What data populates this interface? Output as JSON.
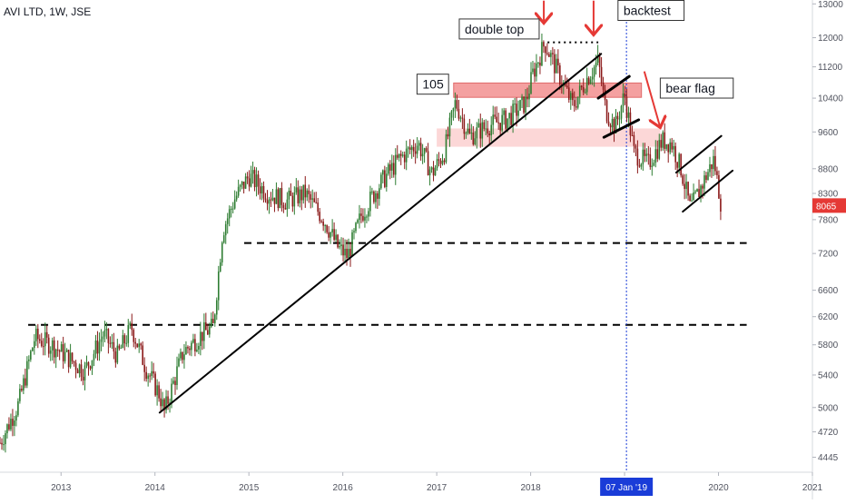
{
  "header": {
    "symbol_title": "AVI LTD, 1W, JSE"
  },
  "chart_data": {
    "type": "candlestick",
    "title": "AVI LTD, 1W, JSE",
    "x_range": [
      2012.35,
      2021.0
    ],
    "y_range": [
      4290,
      13120
    ],
    "y_scale": "log",
    "y_ticks": [
      4445,
      4720,
      5000,
      5400,
      5800,
      6200,
      6600,
      7200,
      7800,
      8300,
      8800,
      9600,
      10400,
      11200,
      12000,
      13000
    ],
    "y_tick_labels": [
      "4445",
      "4720",
      "5000",
      "5400",
      "5800",
      "6200",
      "6600",
      "7200",
      "7800",
      "8300",
      "8800",
      "9600",
      "10400",
      "11200",
      "12000",
      "13000"
    ],
    "x_ticks": [
      2013,
      2014,
      2015,
      2016,
      2017,
      2018,
      2019,
      2020,
      2021
    ],
    "x_tick_labels": [
      "2013",
      "2014",
      "2015",
      "2016",
      "2017",
      "2018",
      "",
      "2020",
      "2021"
    ],
    "last_price": {
      "value": 8065,
      "label": "8065",
      "color": "#e53935"
    },
    "crosshair": {
      "x": 2019.02,
      "label": "07 Jan '19",
      "color": "#1a3cd8"
    },
    "colors": {
      "up": "#2e7d32",
      "down": "#8b1a1a",
      "zone_dark": "#f08080",
      "zone_light": "#fbc6c6",
      "arrow": "#e53935"
    },
    "price_path": [
      [
        2012.35,
        4600
      ],
      [
        2012.55,
        5050
      ],
      [
        2012.72,
        5900
      ],
      [
        2012.9,
        5800
      ],
      [
        2013.05,
        5650
      ],
      [
        2013.25,
        5450
      ],
      [
        2013.45,
        5950
      ],
      [
        2013.6,
        5650
      ],
      [
        2013.75,
        6050
      ],
      [
        2013.9,
        5500
      ],
      [
        2014.05,
        5150
      ],
      [
        2014.1,
        4950
      ],
      [
        2014.3,
        5700
      ],
      [
        2014.5,
        5950
      ],
      [
        2014.62,
        6050
      ],
      [
        2014.72,
        7600
      ],
      [
        2014.85,
        8200
      ],
      [
        2015.0,
        8650
      ],
      [
        2015.2,
        8300
      ],
      [
        2015.4,
        8150
      ],
      [
        2015.6,
        8300
      ],
      [
        2015.8,
        7800
      ],
      [
        2015.95,
        7300
      ],
      [
        2016.05,
        7150
      ],
      [
        2016.2,
        7900
      ],
      [
        2016.4,
        8500
      ],
      [
        2016.6,
        9000
      ],
      [
        2016.8,
        9350
      ],
      [
        2016.95,
        8700
      ],
      [
        2017.08,
        9150
      ],
      [
        2017.2,
        10300
      ],
      [
        2017.35,
        9500
      ],
      [
        2017.55,
        9750
      ],
      [
        2017.75,
        9900
      ],
      [
        2017.95,
        10300
      ],
      [
        2018.02,
        11000
      ],
      [
        2018.15,
        11850
      ],
      [
        2018.3,
        11000
      ],
      [
        2018.45,
        10200
      ],
      [
        2018.6,
        10900
      ],
      [
        2018.72,
        11350
      ],
      [
        2018.8,
        10100
      ],
      [
        2018.9,
        9700
      ],
      [
        2019.0,
        10500
      ],
      [
        2019.1,
        9150
      ],
      [
        2019.25,
        8900
      ],
      [
        2019.4,
        9400
      ],
      [
        2019.5,
        9350
      ],
      [
        2019.6,
        8800
      ],
      [
        2019.7,
        8000
      ],
      [
        2019.82,
        8450
      ],
      [
        2019.95,
        9000
      ],
      [
        2020.03,
        8065
      ]
    ],
    "horizontal_levels": [
      {
        "value": 7380,
        "from": 2014.95,
        "to": 2020.3,
        "style": "dashed"
      },
      {
        "value": 6080,
        "from": 2012.65,
        "to": 2020.3,
        "style": "dashed"
      }
    ],
    "resistance_zones": [
      {
        "from": 2017.18,
        "to": 2019.18,
        "low": 10420,
        "high": 10780,
        "shade": "dark"
      },
      {
        "from": 2017.0,
        "to": 2019.38,
        "low": 9270,
        "high": 9680,
        "shade": "light"
      }
    ],
    "trendlines": [
      {
        "points": [
          [
            2014.05,
            4940
          ],
          [
            2018.75,
            11550
          ]
        ],
        "width": 2
      },
      {
        "points": [
          [
            2018.72,
            10400
          ],
          [
            2019.05,
            10950
          ]
        ],
        "width": 3
      },
      {
        "points": [
          [
            2018.78,
            9480
          ],
          [
            2019.15,
            9880
          ]
        ],
        "width": 3
      },
      {
        "points": [
          [
            2019.55,
            8720
          ],
          [
            2020.03,
            9510
          ]
        ],
        "width": 2
      },
      {
        "points": [
          [
            2019.62,
            7950
          ],
          [
            2020.15,
            8760
          ]
        ],
        "width": 2
      }
    ],
    "dotted_lines": [
      {
        "points": [
          [
            2018.18,
            11870
          ],
          [
            2018.72,
            11870
          ]
        ]
      }
    ],
    "annotations": [
      {
        "text": "double top",
        "x": 2017.24,
        "y": 12250
      },
      {
        "text": "backtest",
        "x": 2018.93,
        "y": 12800
      },
      {
        "text": "105",
        "x": 2016.79,
        "y": 10750
      },
      {
        "text": "bear flag",
        "x": 2019.38,
        "y": 10650
      }
    ],
    "arrows": [
      {
        "x1": 2018.14,
        "y1": 13100,
        "x2": 2018.14,
        "y2": 12420
      },
      {
        "x1": 2018.67,
        "y1": 13100,
        "x2": 2018.67,
        "y2": 12080
      },
      {
        "x1": 2019.21,
        "y1": 11080,
        "x2": 2019.38,
        "y2": 9700
      }
    ]
  }
}
